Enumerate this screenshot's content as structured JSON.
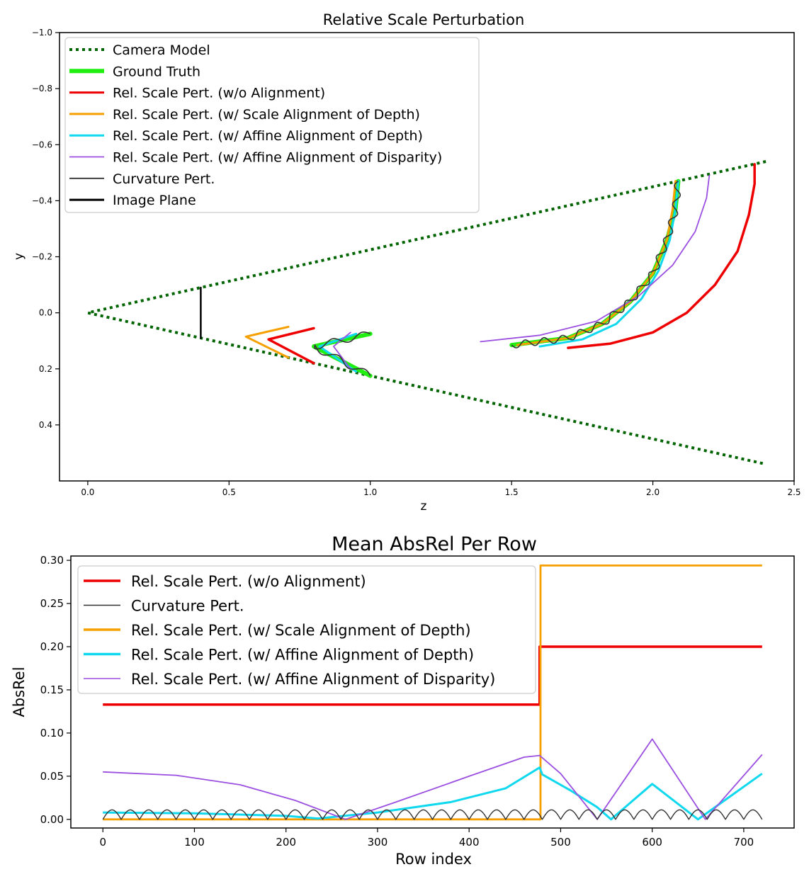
{
  "colors": {
    "camera": "#006400",
    "gt": "#22ee11",
    "red": "#ee0000",
    "orange": "#f5a000",
    "cyan": "#10d8ee",
    "purple": "#9b4fe0",
    "curv": "#333333",
    "image_plane": "#000000"
  },
  "chart_data": [
    {
      "type": "line",
      "title": "Relative Scale Perturbation",
      "xlabel": "z",
      "ylabel": "y",
      "xlim": [
        -0.1,
        2.5
      ],
      "ylim": [
        -1.0,
        0.6
      ],
      "y_inverted": true,
      "xticks": [
        0.0,
        0.5,
        1.0,
        1.5,
        2.0,
        2.5
      ],
      "xtick_labels": [
        "0.0",
        "0.5",
        "1.0",
        "1.5",
        "2.0",
        "2.5"
      ],
      "yticks": [
        -1.0,
        -0.8,
        -0.6,
        -0.4,
        -0.2,
        0.0,
        0.2,
        0.4
      ],
      "ytick_labels": [
        "−1.0",
        "−0.8",
        "−0.6",
        "−0.4",
        "−0.2",
        "0.0",
        "0.2",
        "0.4"
      ],
      "legend": [
        {
          "label": "Camera Model",
          "color_key": "camera",
          "style": "dotted"
        },
        {
          "label": "Ground Truth",
          "color_key": "gt",
          "style": "thick"
        },
        {
          "label": "Rel. Scale Pert. (w/o Alignment)",
          "color_key": "red",
          "style": "solid"
        },
        {
          "label": "Rel. Scale Pert. (w/ Scale Alignment of Depth)",
          "color_key": "orange",
          "style": "solid"
        },
        {
          "label": "Rel. Scale Pert. (w/ Affine Alignment of Depth)",
          "color_key": "cyan",
          "style": "solid"
        },
        {
          "label": "Rel. Scale Pert. (w/ Affine Alignment of Disparity)",
          "color_key": "purple",
          "style": "thin"
        },
        {
          "label": "Curvature Pert.",
          "color_key": "curv",
          "style": "thin"
        },
        {
          "label": "Image Plane",
          "color_key": "image_plane",
          "style": "solid"
        }
      ],
      "series": [
        {
          "name": "Camera Model",
          "color_key": "camera",
          "dashed": true,
          "width": 4,
          "points": [
            [
              2.4,
              -0.54
            ],
            [
              0.0,
              0.0
            ],
            [
              2.4,
              0.54
            ]
          ]
        },
        {
          "name": "Image Plane",
          "color_key": "image_plane",
          "width": 2.5,
          "points": [
            [
              0.4,
              -0.09
            ],
            [
              0.4,
              0.09
            ]
          ]
        },
        {
          "name": "Ground Truth (wedge)",
          "color_key": "gt",
          "width": 6,
          "points": [
            [
              1.0,
              0.075
            ],
            [
              0.8,
              0.12
            ],
            [
              1.0,
              0.225
            ]
          ]
        },
        {
          "name": "Ground Truth (curve)",
          "color_key": "gt",
          "width": 6,
          "points": [
            [
              1.5,
              0.115
            ],
            [
              1.7,
              0.09
            ],
            [
              1.82,
              0.04
            ],
            [
              1.92,
              -0.04
            ],
            [
              2.0,
              -0.14
            ],
            [
              2.05,
              -0.26
            ],
            [
              2.08,
              -0.37
            ],
            [
              2.09,
              -0.47
            ]
          ]
        },
        {
          "name": "Rel. Scale Pert. (w/o Alignment) wedge",
          "color_key": "red",
          "width": 3.5,
          "points": [
            [
              0.8,
              0.055
            ],
            [
              0.64,
              0.095
            ],
            [
              0.8,
              0.18
            ]
          ]
        },
        {
          "name": "Rel. Scale Pert. (w/o Alignment) curve",
          "color_key": "red",
          "width": 3.5,
          "points": [
            [
              1.7,
              0.125
            ],
            [
              1.85,
              0.11
            ],
            [
              2.0,
              0.07
            ],
            [
              2.12,
              0.0
            ],
            [
              2.22,
              -0.1
            ],
            [
              2.3,
              -0.22
            ],
            [
              2.34,
              -0.35
            ],
            [
              2.36,
              -0.46
            ],
            [
              2.36,
              -0.53
            ]
          ]
        },
        {
          "name": "Scale Alignment of Depth wedge",
          "color_key": "orange",
          "width": 3,
          "points": [
            [
              0.71,
              0.05
            ],
            [
              0.56,
              0.085
            ],
            [
              0.71,
              0.16
            ]
          ]
        },
        {
          "name": "Scale Alignment of Depth curve",
          "color_key": "orange",
          "width": 3,
          "points": [
            [
              1.52,
              0.115
            ],
            [
              1.7,
              0.09
            ],
            [
              1.82,
              0.04
            ],
            [
              1.92,
              -0.04
            ],
            [
              2.0,
              -0.14
            ],
            [
              2.05,
              -0.26
            ],
            [
              2.07,
              -0.37
            ],
            [
              2.08,
              -0.47
            ]
          ]
        },
        {
          "name": "Affine Alignment of Depth wedge",
          "color_key": "cyan",
          "width": 3,
          "points": [
            [
              0.95,
              0.075
            ],
            [
              0.82,
              0.12
            ],
            [
              0.95,
              0.21
            ]
          ]
        },
        {
          "name": "Affine Alignment of Depth curve",
          "color_key": "cyan",
          "width": 3,
          "points": [
            [
              1.6,
              0.12
            ],
            [
              1.75,
              0.095
            ],
            [
              1.87,
              0.04
            ],
            [
              1.96,
              -0.05
            ],
            [
              2.02,
              -0.15
            ],
            [
              2.06,
              -0.26
            ],
            [
              2.08,
              -0.37
            ],
            [
              2.09,
              -0.47
            ]
          ]
        },
        {
          "name": "Affine Alignment of Disparity wedge",
          "color_key": "purple",
          "width": 1.8,
          "points": [
            [
              0.93,
              0.07
            ],
            [
              0.87,
              0.12
            ],
            [
              0.93,
              0.2
            ]
          ]
        },
        {
          "name": "Affine Alignment of Disparity curve",
          "color_key": "purple",
          "width": 1.8,
          "points": [
            [
              1.39,
              0.103
            ],
            [
              1.6,
              0.08
            ],
            [
              1.8,
              0.03
            ],
            [
              1.95,
              -0.06
            ],
            [
              2.07,
              -0.17
            ],
            [
              2.15,
              -0.29
            ],
            [
              2.19,
              -0.41
            ],
            [
              2.2,
              -0.49
            ]
          ]
        }
      ],
      "curvature_wiggle": {
        "name": "Curvature Pert.",
        "color_key": "curv",
        "amplitude": 0.012,
        "cycles_wedge": 4,
        "cycles_curve": 14
      }
    },
    {
      "type": "line",
      "title": "Mean AbsRel Per Row",
      "xlabel": "Row index",
      "ylabel": "AbsRel",
      "xlim": [
        -35,
        755
      ],
      "ylim": [
        -0.01,
        0.305
      ],
      "xticks": [
        0,
        100,
        200,
        300,
        400,
        500,
        600,
        700
      ],
      "xtick_labels": [
        "0",
        "100",
        "200",
        "300",
        "400",
        "500",
        "600",
        "700"
      ],
      "yticks": [
        0.0,
        0.05,
        0.1,
        0.15,
        0.2,
        0.25,
        0.3
      ],
      "ytick_labels": [
        "0.00",
        "0.05",
        "0.10",
        "0.15",
        "0.20",
        "0.25",
        "0.30"
      ],
      "legend": [
        {
          "label": "Rel. Scale Pert. (w/o Alignment)",
          "color_key": "red",
          "style": "solid"
        },
        {
          "label": "Curvature Pert.",
          "color_key": "curv",
          "style": "thin"
        },
        {
          "label": "Rel. Scale Pert. (w/ Scale Alignment of Depth)",
          "color_key": "orange",
          "style": "solid"
        },
        {
          "label": "Rel. Scale Pert. (w/ Affine Alignment of Depth)",
          "color_key": "cyan",
          "style": "solid"
        },
        {
          "label": "Rel. Scale Pert. (w/ Affine Alignment of Disparity)",
          "color_key": "purple",
          "style": "thin"
        }
      ],
      "series": [
        {
          "name": "Rel. Scale Pert. (w/o Alignment)",
          "color_key": "red",
          "width": 3.5,
          "points": [
            [
              0,
              0.133
            ],
            [
              477,
              0.133
            ],
            [
              477,
              0.2
            ],
            [
              720,
              0.2
            ]
          ]
        },
        {
          "name": "Rel. Scale Pert. (w/ Scale Alignment of Depth)",
          "color_key": "orange",
          "width": 2.8,
          "points": [
            [
              0,
              0.0
            ],
            [
              478,
              0.0
            ],
            [
              478,
              0.294
            ],
            [
              720,
              0.294
            ]
          ]
        },
        {
          "name": "Rel. Scale Pert. (w/ Affine Alignment of Depth)",
          "color_key": "cyan",
          "width": 3,
          "points": [
            [
              0,
              0.008
            ],
            [
              100,
              0.007
            ],
            [
              200,
              0.004
            ],
            [
              235,
              0.001
            ],
            [
              300,
              0.008
            ],
            [
              380,
              0.02
            ],
            [
              440,
              0.036
            ],
            [
              477,
              0.06
            ],
            [
              480,
              0.052
            ],
            [
              510,
              0.034
            ],
            [
              540,
              0.014
            ],
            [
              555,
              0.0
            ],
            [
              600,
              0.041
            ],
            [
              650,
              0.0
            ],
            [
              720,
              0.053
            ]
          ]
        },
        {
          "name": "Rel. Scale Pert. (w/ Affine Alignment of Disparity)",
          "color_key": "purple",
          "width": 1.8,
          "points": [
            [
              0,
              0.055
            ],
            [
              80,
              0.051
            ],
            [
              150,
              0.04
            ],
            [
              210,
              0.022
            ],
            [
              265,
              0.0
            ],
            [
              320,
              0.02
            ],
            [
              400,
              0.05
            ],
            [
              460,
              0.072
            ],
            [
              477,
              0.074
            ],
            [
              500,
              0.053
            ],
            [
              540,
              0.0
            ],
            [
              600,
              0.093
            ],
            [
              658,
              0.0
            ],
            [
              720,
              0.075
            ]
          ]
        },
        {
          "name": "Curvature Pert.",
          "color_key": "curv",
          "width": 1.4,
          "wiggle": {
            "from": 0,
            "to": 720,
            "period": 20,
            "amplitude": 0.011
          }
        }
      ]
    }
  ]
}
